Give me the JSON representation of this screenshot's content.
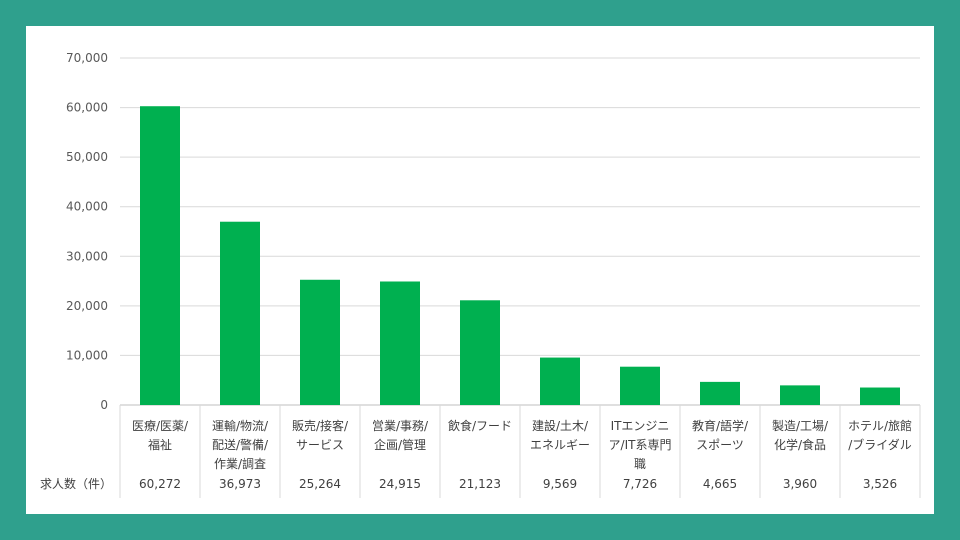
{
  "chart_data": {
    "type": "bar",
    "title": "",
    "xlabel": "",
    "ylabel": "",
    "ylim": [
      0,
      70000
    ],
    "yticks": [
      0,
      10000,
      20000,
      30000,
      40000,
      50000,
      60000,
      70000
    ],
    "ytick_labels": [
      "0",
      "10,000",
      "20,000",
      "30,000",
      "40,000",
      "50,000",
      "60,000",
      "70,000"
    ],
    "grid": true,
    "bar_color": "#00b050",
    "categories": [
      [
        "医療/医薬/",
        "福祉"
      ],
      [
        "運輸/物流/",
        "配送/警備/",
        "作業/調査"
      ],
      [
        "販売/接客/",
        "サービス"
      ],
      [
        "営業/事務/",
        "企画/管理"
      ],
      [
        "飲食/フード"
      ],
      [
        "建設/土木/",
        "エネルギー"
      ],
      [
        "ITエンジニ",
        "ア/IT系専門",
        "職"
      ],
      [
        "教育/語学/",
        "スポーツ"
      ],
      [
        "製造/工場/",
        "化学/食品"
      ],
      [
        "ホテル/旅館",
        "/ブライダル"
      ]
    ],
    "values": [
      60272,
      36973,
      25264,
      24915,
      21123,
      9569,
      7726,
      4665,
      3960,
      3526
    ],
    "value_labels": [
      "60,272",
      "36,973",
      "25,264",
      "24,915",
      "21,123",
      "9,569",
      "7,726",
      "4,665",
      "3,960",
      "3,526"
    ],
    "table_row_title": "求人数（件）"
  }
}
